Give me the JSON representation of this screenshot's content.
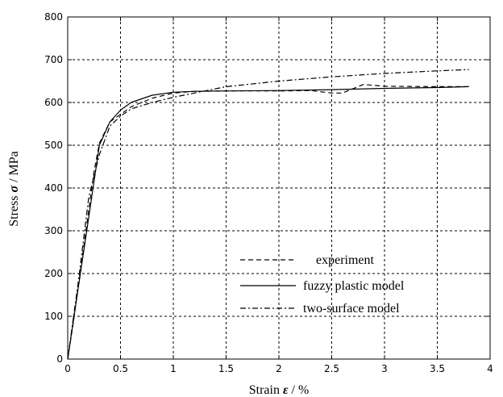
{
  "chart_data": {
    "type": "line",
    "xlabel_prefix": "Strain ",
    "xlabel_symbol": "ε",
    "xlabel_suffix": " / %",
    "ylabel_prefix": "Stress ",
    "ylabel_symbol": "σ",
    "ylabel_suffix": " / MPa",
    "xlim": [
      0,
      4
    ],
    "ylim": [
      0,
      800
    ],
    "x_ticks": [
      "0",
      "0.5",
      "1",
      "1.5",
      "2",
      "2.5",
      "3",
      "3.5",
      "4"
    ],
    "y_ticks": [
      "0",
      "100",
      "200",
      "300",
      "400",
      "500",
      "600",
      "700",
      "800"
    ],
    "grid": true,
    "legend_position": "lower-right",
    "series": [
      {
        "name": "experiment",
        "style": "dashed",
        "points": [
          [
            0,
            0
          ],
          [
            0.05,
            80
          ],
          [
            0.1,
            170
          ],
          [
            0.15,
            260
          ],
          [
            0.2,
            350
          ],
          [
            0.25,
            440
          ],
          [
            0.3,
            505
          ],
          [
            0.4,
            555
          ],
          [
            0.5,
            572
          ],
          [
            0.6,
            590
          ],
          [
            0.8,
            610
          ],
          [
            1.0,
            622
          ],
          [
            1.2,
            626
          ],
          [
            1.5,
            627
          ],
          [
            2.0,
            627
          ],
          [
            2.3,
            628
          ],
          [
            2.5,
            622
          ],
          [
            2.6,
            622
          ],
          [
            2.7,
            632
          ],
          [
            2.8,
            642
          ],
          [
            3.0,
            638
          ],
          [
            3.5,
            637
          ],
          [
            3.8,
            637
          ]
        ]
      },
      {
        "name": "fuzzy plastic model",
        "style": "solid",
        "points": [
          [
            0,
            0
          ],
          [
            0.3,
            500
          ],
          [
            0.4,
            555
          ],
          [
            0.5,
            582
          ],
          [
            0.6,
            600
          ],
          [
            0.8,
            617
          ],
          [
            1.0,
            624
          ],
          [
            1.2,
            626
          ],
          [
            1.5,
            627
          ],
          [
            2.0,
            628
          ],
          [
            2.5,
            630
          ],
          [
            3.0,
            633
          ],
          [
            3.5,
            635
          ],
          [
            3.8,
            637
          ]
        ]
      },
      {
        "name": "two-surface model",
        "style": "dashdot",
        "points": [
          [
            0,
            0
          ],
          [
            0.1,
            180
          ],
          [
            0.2,
            380
          ],
          [
            0.3,
            478
          ],
          [
            0.4,
            545
          ],
          [
            0.5,
            568
          ],
          [
            0.6,
            585
          ],
          [
            0.8,
            600
          ],
          [
            1.0,
            612
          ],
          [
            1.2,
            622
          ],
          [
            1.5,
            637
          ],
          [
            2.0,
            650
          ],
          [
            2.5,
            660
          ],
          [
            3.0,
            668
          ],
          [
            3.5,
            674
          ],
          [
            3.8,
            677
          ]
        ]
      }
    ]
  }
}
